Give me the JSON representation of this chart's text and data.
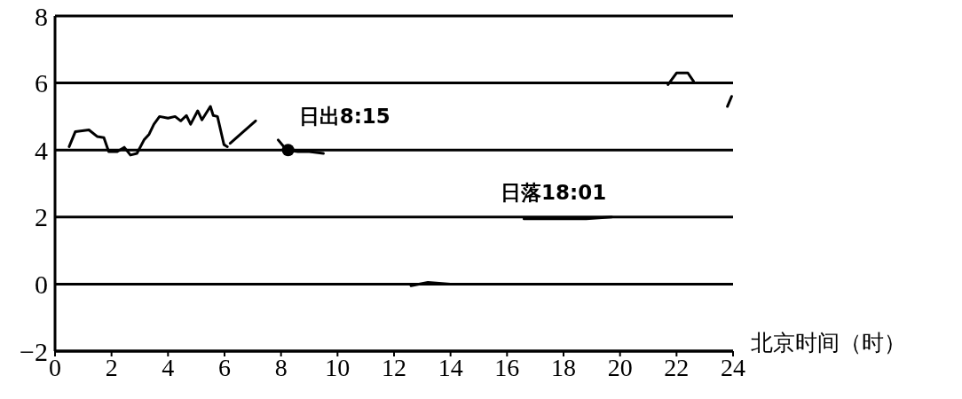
{
  "chart_data": {
    "type": "line",
    "xlabel": "北京时间（时）",
    "x": [
      0.5,
      0.72,
      1.2,
      1.5,
      1.73,
      1.9,
      2.2,
      2.45,
      2.67,
      2.9,
      3.15,
      3.33,
      3.5,
      3.7,
      4.0,
      4.25,
      4.45,
      4.65,
      4.8,
      5.05,
      5.2,
      5.5,
      5.6,
      5.75,
      5.98,
      6.1,
      6.15,
      6.2,
      6.6,
      7.1,
      7.5,
      7.9,
      8.2,
      8.6,
      9.0,
      9.5,
      11,
      12.6,
      13.2,
      14.0,
      16,
      16.6,
      17.2,
      18.8,
      19.7,
      21,
      21.7,
      22.0,
      22.4,
      22.6,
      23,
      23.8,
      23.95
    ],
    "series": [
      {
        "color": "#000000",
        "values": [
          4.1,
          4.55,
          4.6,
          4.4,
          4.37,
          3.95,
          3.95,
          4.08,
          3.85,
          3.9,
          4.3,
          4.47,
          4.77,
          5.0,
          4.95,
          5.0,
          4.87,
          5.03,
          4.77,
          5.17,
          4.9,
          5.3,
          5.03,
          5.0,
          4.16,
          4.1,
          null,
          4.2,
          4.5,
          4.87,
          null,
          4.3,
          4.0,
          3.95,
          3.95,
          3.9,
          null,
          -0.05,
          0.05,
          0.0,
          null,
          1.95,
          1.95,
          1.95,
          2.0,
          null,
          5.95,
          6.3,
          6.3,
          6.05,
          null,
          5.3,
          5.6
        ]
      }
    ],
    "xlim": [
      0,
      24
    ],
    "xticks": [
      0,
      2,
      4,
      6,
      8,
      10,
      12,
      14,
      16,
      18,
      20,
      22,
      24
    ],
    "ylim": [
      -2,
      8
    ],
    "yticks": [
      -2,
      0,
      2,
      4,
      6,
      8
    ],
    "grid": "y",
    "annotations": [
      {
        "text": "日出8:15",
        "x": 8.25,
        "y": 4
      },
      {
        "text": "日落18:01",
        "x": 18.02,
        "y": 2
      }
    ]
  }
}
